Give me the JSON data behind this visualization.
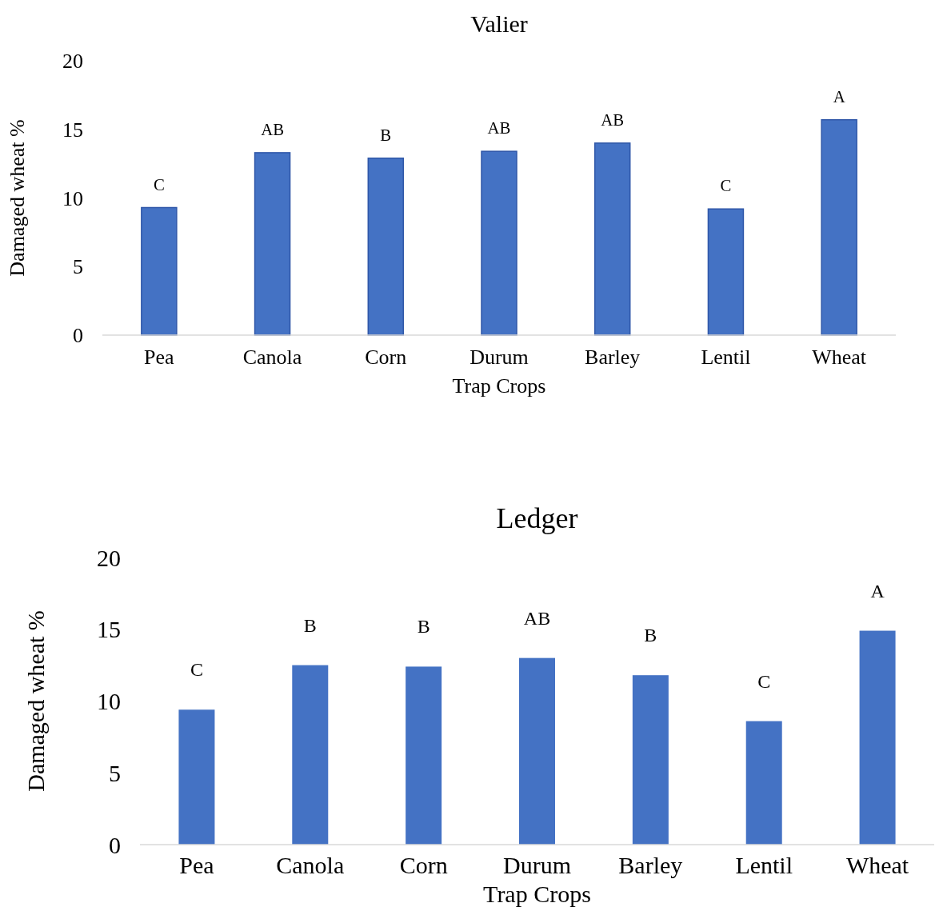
{
  "chart_data": [
    {
      "type": "bar",
      "title": "Valier",
      "xlabel": "Trap Crops",
      "ylabel": "Damaged wheat %",
      "categories": [
        "Pea",
        "Canola",
        "Corn",
        "Durum",
        "Barley",
        "Lentil",
        "Wheat"
      ],
      "values": [
        9.3,
        13.3,
        12.9,
        13.4,
        14.0,
        9.2,
        15.7
      ],
      "color": "#4472c4",
      "ylim": [
        0,
        20
      ],
      "yticks": [
        0,
        5,
        10,
        15,
        20
      ],
      "grid": false,
      "annotations": [
        {
          "text": "C",
          "x": "Pea",
          "y": 9.3
        },
        {
          "text": "AB",
          "x": "Canola",
          "y": 13.3
        },
        {
          "text": "B",
          "x": "Corn",
          "y": 12.9
        },
        {
          "text": "AB",
          "x": "Durum",
          "y": 13.4
        },
        {
          "text": "AB",
          "x": "Barley",
          "y": 14.0
        },
        {
          "text": "C",
          "x": "Lentil",
          "y": 9.2
        },
        {
          "text": "A",
          "x": "Wheat",
          "y": 15.7
        }
      ]
    },
    {
      "type": "bar",
      "title": "Ledger",
      "xlabel": "Trap Crops",
      "ylabel": "Damaged wheat %",
      "categories": [
        "Pea",
        "Canola",
        "Corn",
        "Durum",
        "Barley",
        "Lentil",
        "Wheat"
      ],
      "values": [
        9.4,
        12.5,
        12.4,
        13.0,
        11.8,
        8.6,
        14.9
      ],
      "color": "#4472c4",
      "ylim": [
        0,
        20
      ],
      "yticks": [
        0,
        5,
        10,
        15,
        20
      ],
      "grid": false,
      "annotations": [
        {
          "text": "C",
          "x": "Pea",
          "y": 9.4
        },
        {
          "text": "B",
          "x": "Canola",
          "y": 12.5
        },
        {
          "text": "B",
          "x": "Corn",
          "y": 12.4
        },
        {
          "text": "AB",
          "x": "Durum",
          "y": 13.0
        },
        {
          "text": "B",
          "x": "Barley",
          "y": 11.8
        },
        {
          "text": "C",
          "x": "Lentil",
          "y": 8.6
        },
        {
          "text": "A",
          "x": "Wheat",
          "y": 14.9
        }
      ]
    }
  ]
}
